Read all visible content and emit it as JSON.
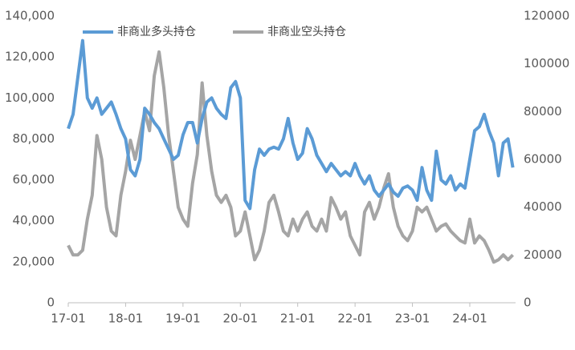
{
  "chart_data": {
    "type": "line",
    "categories": [
      "17-01",
      null,
      null,
      null,
      null,
      null,
      null,
      null,
      null,
      null,
      null,
      null,
      "18-01",
      null,
      null,
      null,
      null,
      null,
      null,
      null,
      null,
      null,
      null,
      null,
      "19-01",
      null,
      null,
      null,
      null,
      null,
      null,
      null,
      null,
      null,
      null,
      null,
      "20-01",
      null,
      null,
      null,
      null,
      null,
      null,
      null,
      null,
      null,
      null,
      null,
      "21-01",
      null,
      null,
      null,
      null,
      null,
      null,
      null,
      null,
      null,
      null,
      null,
      "22-01",
      null,
      null,
      null,
      null,
      null,
      null,
      null,
      null,
      null,
      null,
      null,
      "23-01",
      null,
      null,
      null,
      null,
      null,
      null,
      null,
      null,
      null,
      null,
      null,
      "24-01",
      null,
      null,
      null,
      null,
      null,
      null,
      null,
      null,
      null
    ],
    "series": [
      {
        "name": "非商业多头持仓",
        "color": "#5b9bd5",
        "values": [
          85000,
          92000,
          110000,
          128000,
          100000,
          95000,
          100000,
          92000,
          95000,
          98000,
          92000,
          85000,
          80000,
          65000,
          62000,
          70000,
          95000,
          92000,
          88000,
          85000,
          80000,
          75000,
          70000,
          72000,
          82000,
          88000,
          88000,
          78000,
          90000,
          98000,
          100000,
          95000,
          92000,
          90000,
          105000,
          108000,
          100000,
          50000,
          46000,
          65000,
          75000,
          72000,
          75000,
          76000,
          75000,
          80000,
          90000,
          78000,
          70000,
          73000,
          85000,
          80000,
          72000,
          68000,
          64000,
          68000,
          65000,
          62000,
          64000,
          62000,
          68000,
          62000,
          58000,
          62000,
          55000,
          52000,
          55000,
          58000,
          54000,
          52000,
          56000,
          57000,
          55000,
          50000,
          66000,
          55000,
          50000,
          74000,
          60000,
          58000,
          62000,
          55000,
          58000,
          56000,
          70000,
          84000,
          86000,
          92000,
          84000,
          78000,
          62000,
          78000,
          80000,
          66000
        ]
      },
      {
        "name": "非商业空头持仓",
        "color": "#a5a5a5",
        "axis": "y2",
        "values": [
          24000,
          20000,
          20000,
          22000,
          35000,
          45000,
          70000,
          60000,
          40000,
          30000,
          28000,
          45000,
          55000,
          68000,
          60000,
          70000,
          80000,
          72000,
          95000,
          105000,
          90000,
          70000,
          55000,
          40000,
          35000,
          32000,
          50000,
          62000,
          92000,
          70000,
          55000,
          45000,
          42000,
          45000,
          40000,
          28000,
          30000,
          38000,
          28000,
          18000,
          22000,
          30000,
          42000,
          45000,
          38000,
          30000,
          28000,
          35000,
          30000,
          35000,
          38000,
          32000,
          30000,
          35000,
          30000,
          44000,
          40000,
          35000,
          38000,
          28000,
          24000,
          20000,
          38000,
          42000,
          35000,
          40000,
          48000,
          54000,
          40000,
          32000,
          28000,
          26000,
          30000,
          40000,
          38000,
          40000,
          35000,
          30000,
          32000,
          33000,
          30000,
          28000,
          26000,
          25000,
          35000,
          25000,
          28000,
          26000,
          22000,
          17000,
          18000,
          20000,
          18000,
          20000
        ]
      }
    ],
    "ylim": [
      0,
      140000
    ],
    "yticks": [
      0,
      {
        "value": 20000,
        "label": "20,000"
      },
      {
        "value": 40000,
        "label": "40,000"
      },
      {
        "value": 60000,
        "label": "60,000"
      },
      {
        "value": 80000,
        "label": "80,000"
      },
      {
        "value": 100000,
        "label": "100,000"
      },
      {
        "value": 120000,
        "label": "120,000"
      },
      {
        "value": 140000,
        "label": "140,000"
      }
    ],
    "y2lim": [
      0,
      120000
    ],
    "y2ticks": [
      0,
      20000,
      40000,
      60000,
      80000,
      100000,
      120000
    ],
    "legend": "top"
  }
}
